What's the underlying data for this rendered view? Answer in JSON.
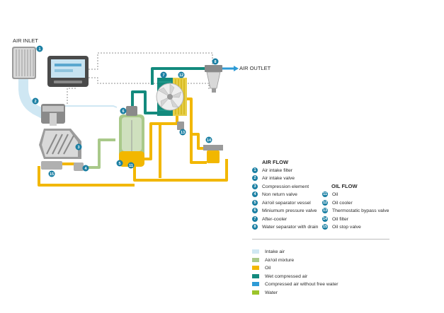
{
  "labels": {
    "air_inlet": "AIR INLET",
    "air_outlet": "AIR OUTLET"
  },
  "air_flow": {
    "title": "AIR FLOW",
    "items": [
      {
        "num": "1",
        "label": "Air intake filter"
      },
      {
        "num": "2",
        "label": "Air intake valve"
      },
      {
        "num": "3",
        "label": "Compression element"
      },
      {
        "num": "4",
        "label": "Non return valve"
      },
      {
        "num": "5",
        "label": "Air/oil separator vessel"
      },
      {
        "num": "6",
        "label": "Miniumum pressure valve"
      },
      {
        "num": "7",
        "label": "After-cooler"
      },
      {
        "num": "8",
        "label": "Water separator with drain"
      }
    ]
  },
  "oil_flow": {
    "title": "OIL FLOW",
    "items": [
      {
        "num": "11",
        "label": "Oil"
      },
      {
        "num": "12",
        "label": "Oil cooler"
      },
      {
        "num": "13",
        "label": "Thermostatic bypass valve"
      },
      {
        "num": "14",
        "label": "Oil filter"
      },
      {
        "num": "15",
        "label": "Oil stop valve"
      }
    ]
  },
  "legend": [
    {
      "label": "Intake air",
      "color": "#cfe7f3"
    },
    {
      "label": "Air/oil mixture",
      "color": "#a9c98a"
    },
    {
      "label": "Oil",
      "color": "#f2b700"
    },
    {
      "label": "Wet compressed air",
      "color": "#138a7d"
    },
    {
      "label": "Compressed air without free water",
      "color": "#2e9bd6"
    },
    {
      "label": "Water",
      "color": "#9cc42a"
    }
  ],
  "diagram_markers": [
    "1",
    "2",
    "3",
    "4",
    "5",
    "6",
    "7",
    "8",
    "11",
    "12",
    "13",
    "14",
    "15"
  ],
  "colors": {
    "marker": "#1a7fa3",
    "intake_air": "#cfe7f3",
    "air_oil": "#a9c98a",
    "oil": "#f2b700",
    "wet_air": "#138a7d",
    "dry_air": "#2e9bd6",
    "water": "#9cc42a"
  }
}
